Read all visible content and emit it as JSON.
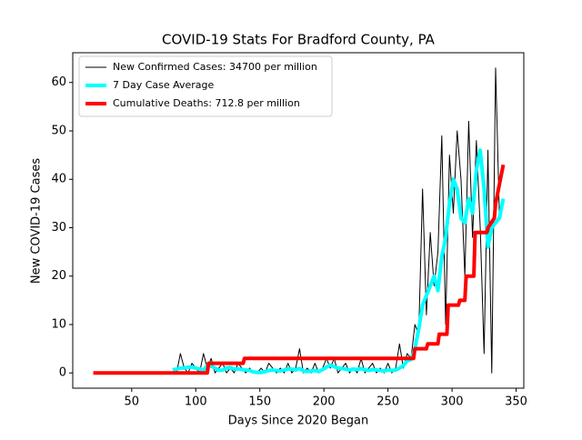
{
  "chart_data": {
    "type": "line",
    "title": "COVID-19 Stats For Bradford County, PA",
    "xlabel": "Days Since 2020 Began",
    "ylabel": "New COVID-19 Cases",
    "xlim": [
      4,
      356
    ],
    "ylim": [
      -3.15,
      66.15
    ],
    "xticks": [
      50,
      100,
      150,
      200,
      250,
      300,
      350
    ],
    "yticks": [
      0,
      10,
      20,
      30,
      40,
      50,
      60
    ],
    "grid": false,
    "legend": "upper left",
    "series": [
      {
        "name": "New Confirmed Cases: 34700 per million",
        "color": "#000000",
        "width": 1,
        "x": [
          82,
          85,
          88,
          91,
          94,
          97,
          100,
          103,
          106,
          109,
          112,
          115,
          118,
          121,
          124,
          127,
          130,
          133,
          136,
          139,
          142,
          145,
          148,
          151,
          154,
          157,
          160,
          163,
          166,
          169,
          172,
          175,
          178,
          181,
          184,
          187,
          190,
          193,
          196,
          199,
          202,
          205,
          208,
          211,
          214,
          217,
          220,
          223,
          226,
          229,
          232,
          235,
          238,
          241,
          244,
          247,
          250,
          253,
          256,
          259,
          262,
          265,
          268,
          271,
          274,
          277,
          280,
          283,
          286,
          289,
          292,
          295,
          298,
          301,
          304,
          307,
          310,
          313,
          316,
          319,
          322,
          325,
          328,
          331,
          334,
          337,
          340
        ],
        "values": [
          1,
          0,
          4,
          1,
          0,
          2,
          1,
          0,
          4,
          1,
          3,
          0,
          1,
          2,
          0,
          1,
          0,
          2,
          1,
          0,
          1,
          0,
          0,
          1,
          0,
          2,
          1,
          0,
          1,
          0,
          2,
          0,
          1,
          5,
          0,
          1,
          0,
          2,
          0,
          1,
          3,
          1,
          3,
          0,
          1,
          2,
          0,
          1,
          0,
          3,
          0,
          1,
          2,
          0,
          1,
          0,
          2,
          0,
          1,
          6,
          1,
          4,
          3,
          10,
          8,
          38,
          12,
          29,
          18,
          25,
          49,
          10,
          45,
          33,
          50,
          40,
          20,
          52,
          28,
          48,
          30,
          4,
          46,
          0,
          63,
          32,
          35
        ]
      },
      {
        "name": "7 Day Case Average",
        "color": "#00ffff",
        "width": 4,
        "x": [
          82,
          85,
          88,
          91,
          94,
          97,
          100,
          103,
          106,
          109,
          112,
          115,
          118,
          121,
          124,
          127,
          130,
          133,
          136,
          139,
          142,
          145,
          148,
          151,
          154,
          157,
          160,
          163,
          166,
          169,
          172,
          175,
          178,
          181,
          184,
          187,
          190,
          193,
          196,
          199,
          202,
          205,
          208,
          211,
          214,
          217,
          220,
          223,
          226,
          229,
          232,
          235,
          238,
          241,
          244,
          247,
          250,
          253,
          256,
          259,
          262,
          265,
          268,
          271,
          274,
          277,
          280,
          283,
          286,
          289,
          292,
          295,
          298,
          301,
          304,
          307,
          310,
          313,
          316,
          319,
          322,
          325,
          328,
          331,
          334,
          337,
          340
        ],
        "values": [
          0.6,
          0.8,
          1,
          1,
          1.2,
          1.2,
          1,
          0.8,
          0.6,
          1.5,
          1.4,
          1,
          0.5,
          0.6,
          1,
          1.1,
          0.8,
          0.8,
          0.7,
          0.6,
          0.5,
          0.2,
          0.1,
          0.1,
          0.3,
          0.5,
          0.6,
          0.5,
          0.4,
          0.6,
          0.8,
          0.8,
          0.6,
          0.9,
          0.4,
          0.3,
          0.4,
          0.5,
          0.3,
          0.7,
          1.2,
          1.6,
          1.3,
          1.0,
          0.9,
          0.8,
          0.6,
          0.8,
          0.7,
          0.9,
          0.6,
          0.5,
          0.7,
          0.6,
          0.5,
          0.4,
          0.6,
          0.5,
          0.6,
          1.0,
          1.5,
          2.5,
          2.8,
          5,
          9,
          14,
          16,
          18,
          20,
          17,
          24,
          28,
          35,
          40,
          38,
          32,
          31,
          36,
          33,
          42,
          46,
          38,
          26,
          30,
          31,
          32,
          36
        ]
      },
      {
        "name": "Cumulative Deaths: 712.8 per million",
        "color": "#ff0000",
        "width": 4,
        "x": [
          20,
          109,
          110,
          137,
          138,
          270,
          271,
          280,
          281,
          289,
          290,
          296,
          297,
          305,
          306,
          310,
          311,
          317,
          318,
          327,
          328,
          333,
          334,
          340
        ],
        "values": [
          0,
          0,
          2,
          2,
          3,
          3,
          5,
          5,
          6,
          6,
          8,
          8,
          14,
          14,
          15,
          15,
          20,
          20,
          29,
          29,
          30,
          32,
          35,
          43
        ]
      }
    ]
  }
}
